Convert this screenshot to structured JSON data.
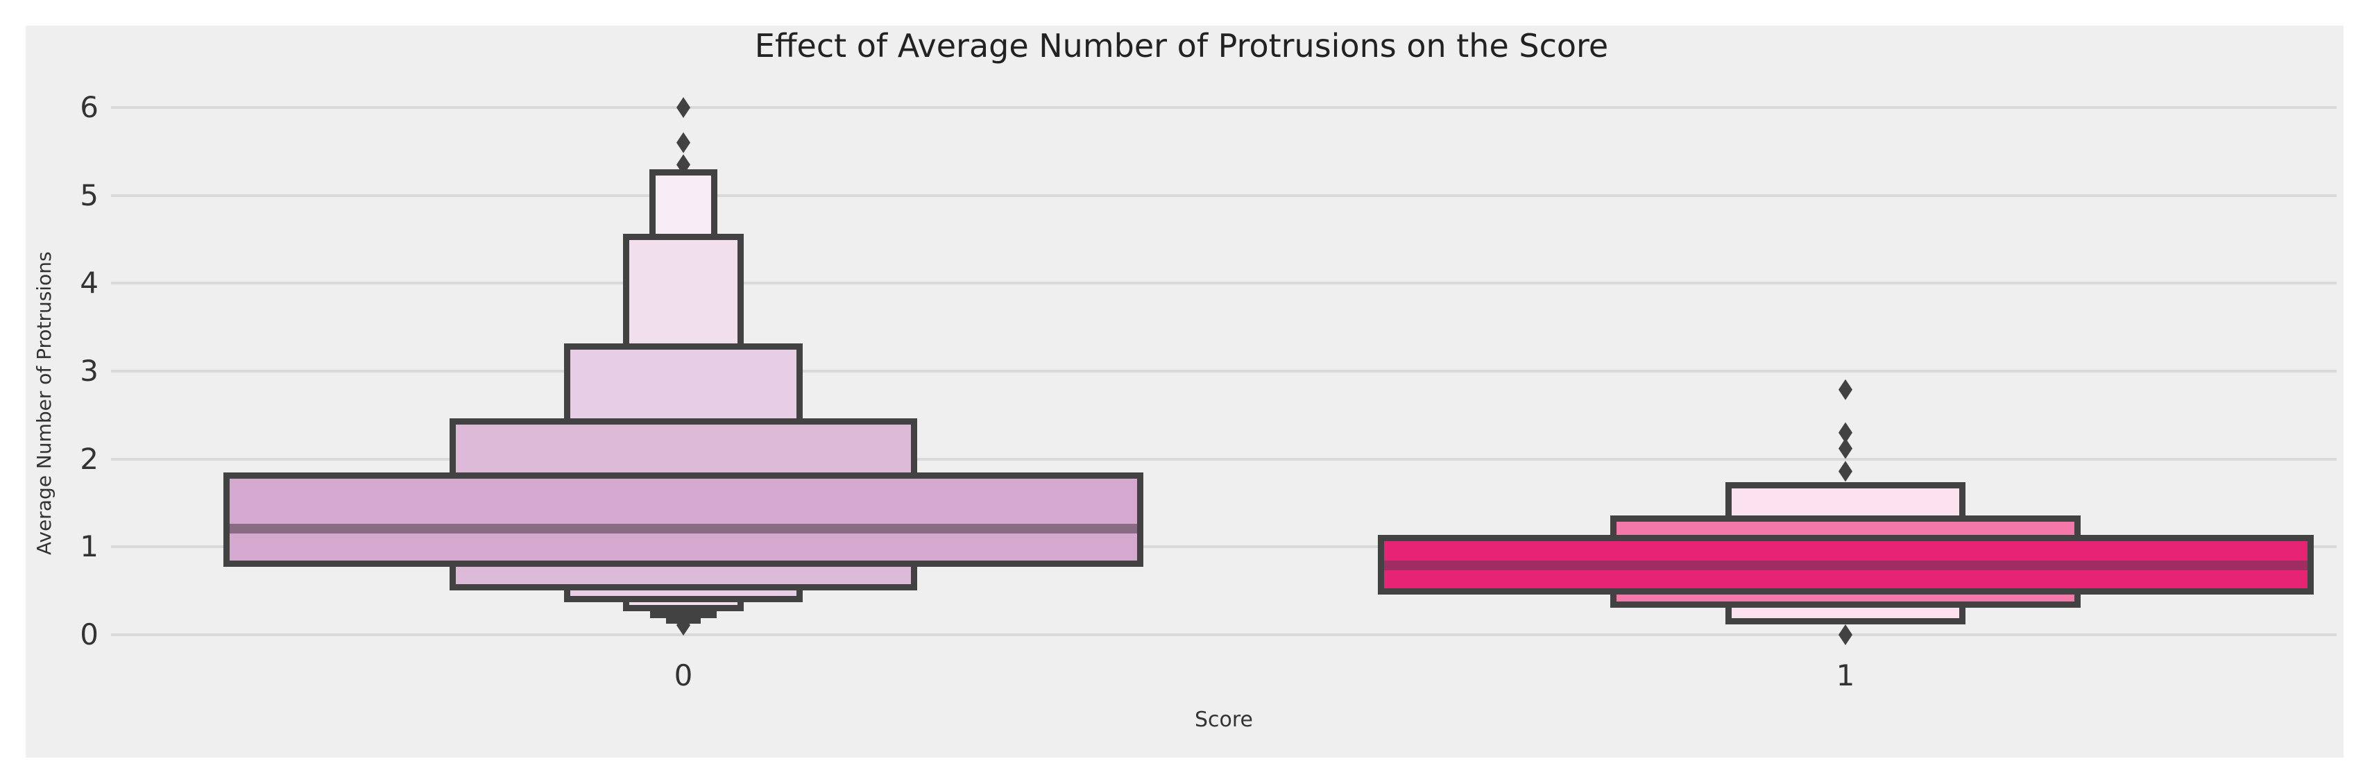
{
  "page": {
    "background": "#ffffff",
    "figure_background": "#EFEFEF"
  },
  "chart_data": {
    "type": "boxen",
    "title": "Effect of Average Number of Protrusions on the Score",
    "xlabel": "Score",
    "ylabel": "Average Number of Protrusions",
    "categories": [
      "0",
      "1"
    ],
    "yticks": [
      0,
      1,
      2,
      3,
      4,
      5,
      6
    ],
    "ylim": [
      -0.3,
      6.5
    ],
    "grid": true,
    "legend_position": "none",
    "colors": {
      "box_border": "#424242",
      "gridline": "#D9D9D9",
      "text": "#333333",
      "outlier": "#424242"
    },
    "series": [
      {
        "category": "0",
        "median": 1.21,
        "median_color": "#8A6B84",
        "boxes": [
          {
            "lower": 0.81,
            "upper": 1.81,
            "width_frac": 1.0,
            "fill": "#D5A8D0"
          },
          {
            "lower": 1.81,
            "upper": 2.43,
            "width_frac": 0.509,
            "fill": "#DEBAD9"
          },
          {
            "lower": 2.43,
            "upper": 3.28,
            "width_frac": 0.26,
            "fill": "#E8CEE4"
          },
          {
            "lower": 3.28,
            "upper": 4.53,
            "width_frac": 0.131,
            "fill": "#F1DFEE"
          },
          {
            "lower": 4.53,
            "upper": 5.26,
            "width_frac": 0.074,
            "fill": "#F8ECF5"
          },
          {
            "lower": 0.54,
            "upper": 0.81,
            "width_frac": 0.509,
            "fill": "#DEBAD9"
          },
          {
            "lower": 0.41,
            "upper": 0.54,
            "width_frac": 0.26,
            "fill": "#E8CEE4"
          },
          {
            "lower": 0.3,
            "upper": 0.41,
            "width_frac": 0.131,
            "fill": "#F1DFEE"
          },
          {
            "lower": 0.23,
            "upper": 0.3,
            "width_frac": 0.072,
            "fill": "#F8ECF5"
          },
          {
            "lower": 0.17,
            "upper": 0.23,
            "width_frac": 0.038,
            "fill": "#F8ECF5"
          }
        ],
        "outliers_high": [
          5.35,
          5.6,
          6.0
        ],
        "outliers_low": [
          0.11
        ]
      },
      {
        "category": "1",
        "median": 0.79,
        "median_color": "#A02D62",
        "boxes": [
          {
            "lower": 0.49,
            "upper": 1.1,
            "width_frac": 1.0,
            "fill": "#E62473"
          },
          {
            "lower": 1.1,
            "upper": 1.32,
            "width_frac": 0.503,
            "fill": "#F478A9"
          },
          {
            "lower": 1.32,
            "upper": 1.7,
            "width_frac": 0.256,
            "fill": "#FBE2EE"
          },
          {
            "lower": 0.34,
            "upper": 0.49,
            "width_frac": 0.503,
            "fill": "#F478A9"
          },
          {
            "lower": 0.15,
            "upper": 0.34,
            "width_frac": 0.256,
            "fill": "#FBE2EE"
          }
        ],
        "outliers_high": [
          1.86,
          2.12,
          2.3,
          2.79
        ],
        "outliers_low": [
          0.0
        ]
      }
    ]
  }
}
